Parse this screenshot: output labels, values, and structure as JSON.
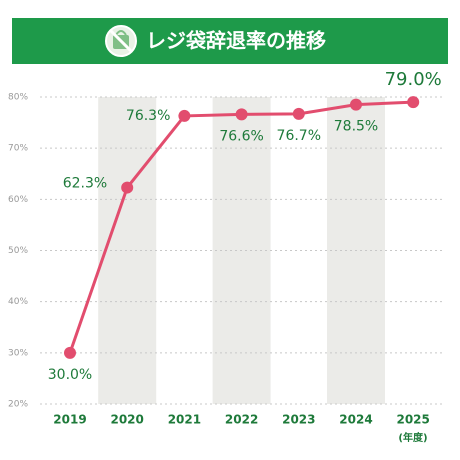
{
  "chart_data": {
    "type": "line",
    "title": "レジ袋辞退率の推移",
    "xlabel": "(年度)",
    "categories": [
      "2019",
      "2020",
      "2021",
      "2022",
      "2023",
      "2024",
      "2025"
    ],
    "series": [
      {
        "name": "レジ袋辞退率",
        "color": "#e24d6e",
        "values": [
          30.0,
          62.3,
          76.3,
          76.6,
          76.7,
          78.5,
          79.0
        ],
        "value_labels": [
          "30.0%",
          "62.3%",
          "76.3%",
          "76.6%",
          "76.7%",
          "78.5%",
          "79.0%"
        ]
      }
    ],
    "ylim": [
      20,
      80
    ],
    "yticks": [
      {
        "value": 20,
        "label": "20%"
      },
      {
        "value": 30,
        "label": "30%"
      },
      {
        "value": 40,
        "label": "40%"
      },
      {
        "value": 50,
        "label": "50%"
      },
      {
        "value": 60,
        "label": "60%"
      },
      {
        "value": 70,
        "label": "70%"
      },
      {
        "value": 80,
        "label": "80%"
      }
    ],
    "grid": true
  }
}
